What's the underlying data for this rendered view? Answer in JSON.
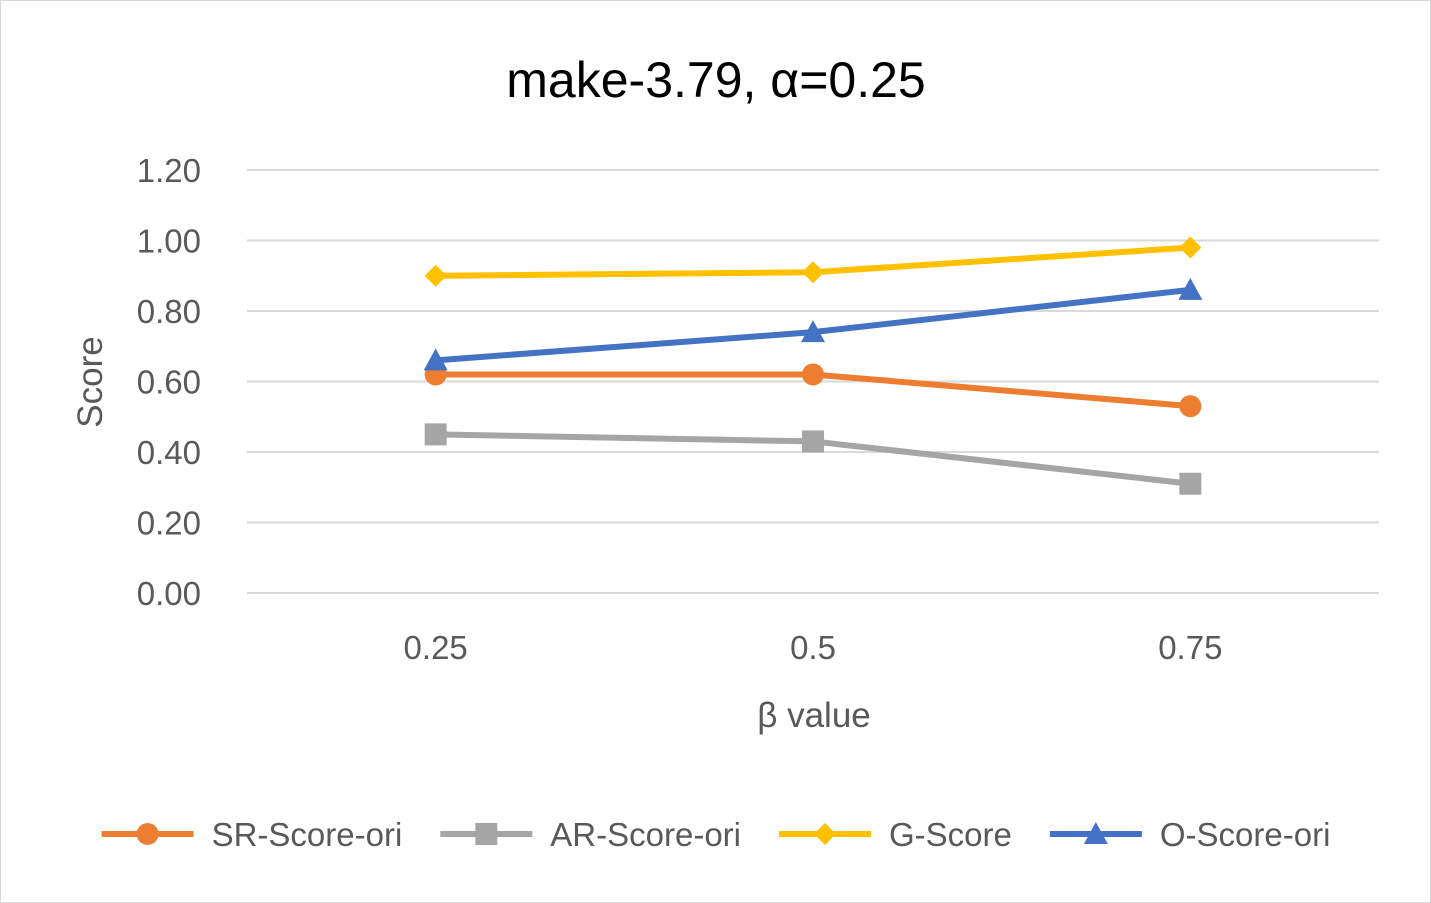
{
  "chart_data": {
    "type": "line",
    "title": "make-3.79, α=0.25",
    "xlabel": "β value",
    "ylabel": "Score",
    "categories": [
      "0.25",
      "0.5",
      "0.75"
    ],
    "ylim": [
      0,
      1.2
    ],
    "yticks": [
      "0.00",
      "0.20",
      "0.40",
      "0.60",
      "0.80",
      "1.00",
      "1.20"
    ],
    "grid": true,
    "legend_position": "bottom",
    "series": [
      {
        "name": "SR-Score-ori",
        "values": [
          0.62,
          0.62,
          0.53
        ],
        "color": "#ED7D31",
        "marker": "circle"
      },
      {
        "name": "AR-Score-ori",
        "values": [
          0.45,
          0.43,
          0.31
        ],
        "color": "#A5A5A5",
        "marker": "square"
      },
      {
        "name": "G-Score",
        "values": [
          0.9,
          0.91,
          0.98
        ],
        "color": "#FFC000",
        "marker": "diamond"
      },
      {
        "name": "O-Score-ori",
        "values": [
          0.66,
          0.74,
          0.86
        ],
        "color": "#4472C4",
        "marker": "triangle"
      }
    ]
  }
}
